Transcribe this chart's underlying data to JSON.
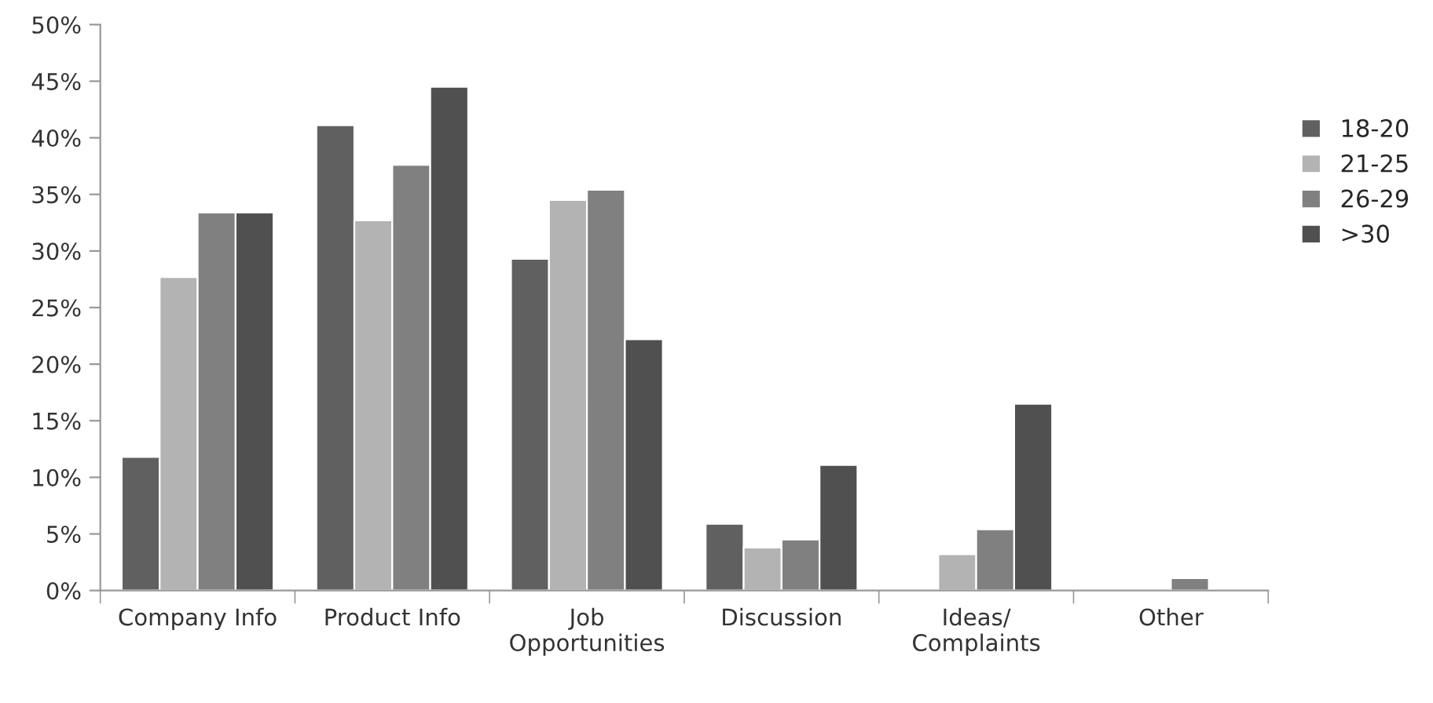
{
  "chart_data": {
    "type": "bar",
    "categories": [
      "Company Info",
      "Product Info",
      "Job\nOpportunities",
      "Discussion",
      "Ideas/\nComplaints",
      "Other"
    ],
    "series": [
      {
        "name": "18-20",
        "color": "#606060",
        "values": [
          11.8,
          41.1,
          29.3,
          5.9,
          null,
          null
        ]
      },
      {
        "name": "21-25",
        "color": "#b3b3b3",
        "values": [
          27.7,
          32.7,
          34.5,
          3.8,
          3.2,
          null
        ]
      },
      {
        "name": "26-29",
        "color": "#808080",
        "values": [
          33.4,
          37.6,
          35.4,
          4.5,
          5.4,
          1.1
        ]
      },
      {
        "name": ">30",
        "color": "#505050",
        "values": [
          33.4,
          44.5,
          22.2,
          11.1,
          16.5,
          null
        ]
      }
    ],
    "ylim": [
      0,
      50
    ],
    "yticks": [
      {
        "value": 0,
        "label": "0%"
      },
      {
        "value": 5,
        "label": "5%"
      },
      {
        "value": 10,
        "label": "10%"
      },
      {
        "value": 15,
        "label": "15%"
      },
      {
        "value": 20,
        "label": "20%"
      },
      {
        "value": 25,
        "label": "25%"
      },
      {
        "value": 30,
        "label": "30%"
      },
      {
        "value": 35,
        "label": "35%"
      },
      {
        "value": 40,
        "label": "40%"
      },
      {
        "value": 45,
        "label": "45%"
      },
      {
        "value": 50,
        "label": "50%"
      }
    ],
    "grid": false,
    "legend": "right"
  }
}
